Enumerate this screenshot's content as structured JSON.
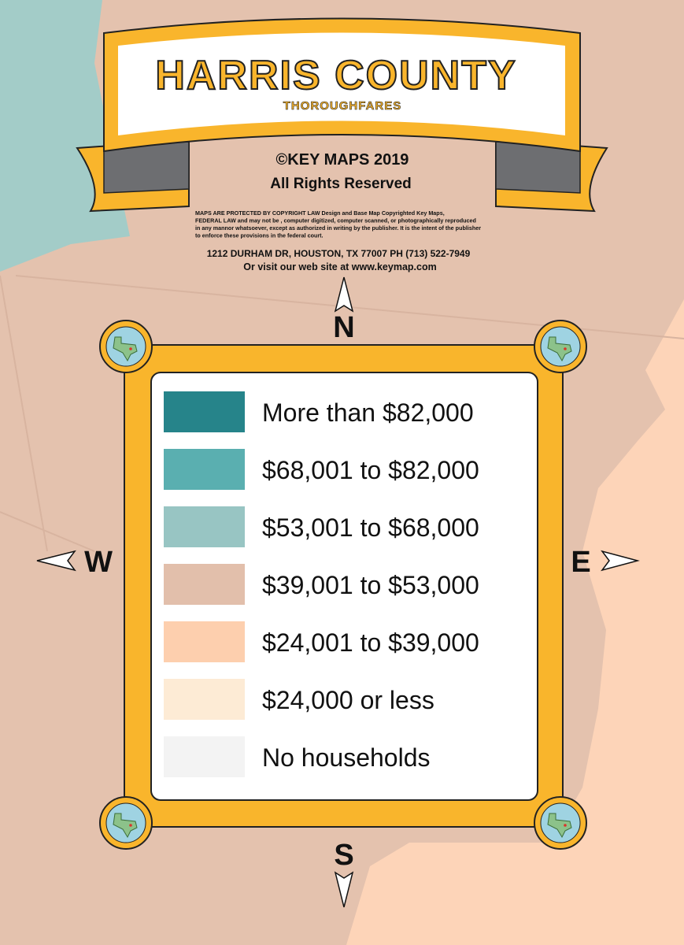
{
  "header": {
    "title": "HARRIS COUNTY",
    "subtitle": "THOROUGHFARES",
    "copyright": "©KEY MAPS  2019",
    "rights": "All Rights Reserved",
    "legal_lines": [
      "MAPS ARE PROTECTED BY COPYRIGHT LAW Design and Base Map Copyrighted Key Maps,",
      "FEDERAL LAW and may not be , computer digitized,  computer scanned, or photographically reproduced",
      "in any mannor whatsoever, except as authorized in writing by the publisher.  It is the intent of the publisher",
      "to enforce these provisions in the federal court."
    ],
    "address": "1212 DURHAM DR,  HOUSTON, TX  77007  PH (713) 522-7949",
    "website": "Or visit our web site at  www.keymap.com"
  },
  "compass": {
    "north": "N",
    "south": "S",
    "east": "E",
    "west": "W"
  },
  "legend": {
    "items": [
      {
        "label": "More than $82,000",
        "color": "#26848a"
      },
      {
        "label": "$68,001 to $82,000",
        "color": "#5aafb0"
      },
      {
        "label": "$53,001 to $68,000",
        "color": "#98c5c3"
      },
      {
        "label": "$39,001 to $53,000",
        "color": "#e2bfab"
      },
      {
        "label": "$24,001 to $39,000",
        "color": "#fdcfae"
      },
      {
        "label": "$24,000 or less",
        "color": "#fdebd5"
      },
      {
        "label": "No households",
        "color": "#f3f3f3"
      }
    ]
  }
}
